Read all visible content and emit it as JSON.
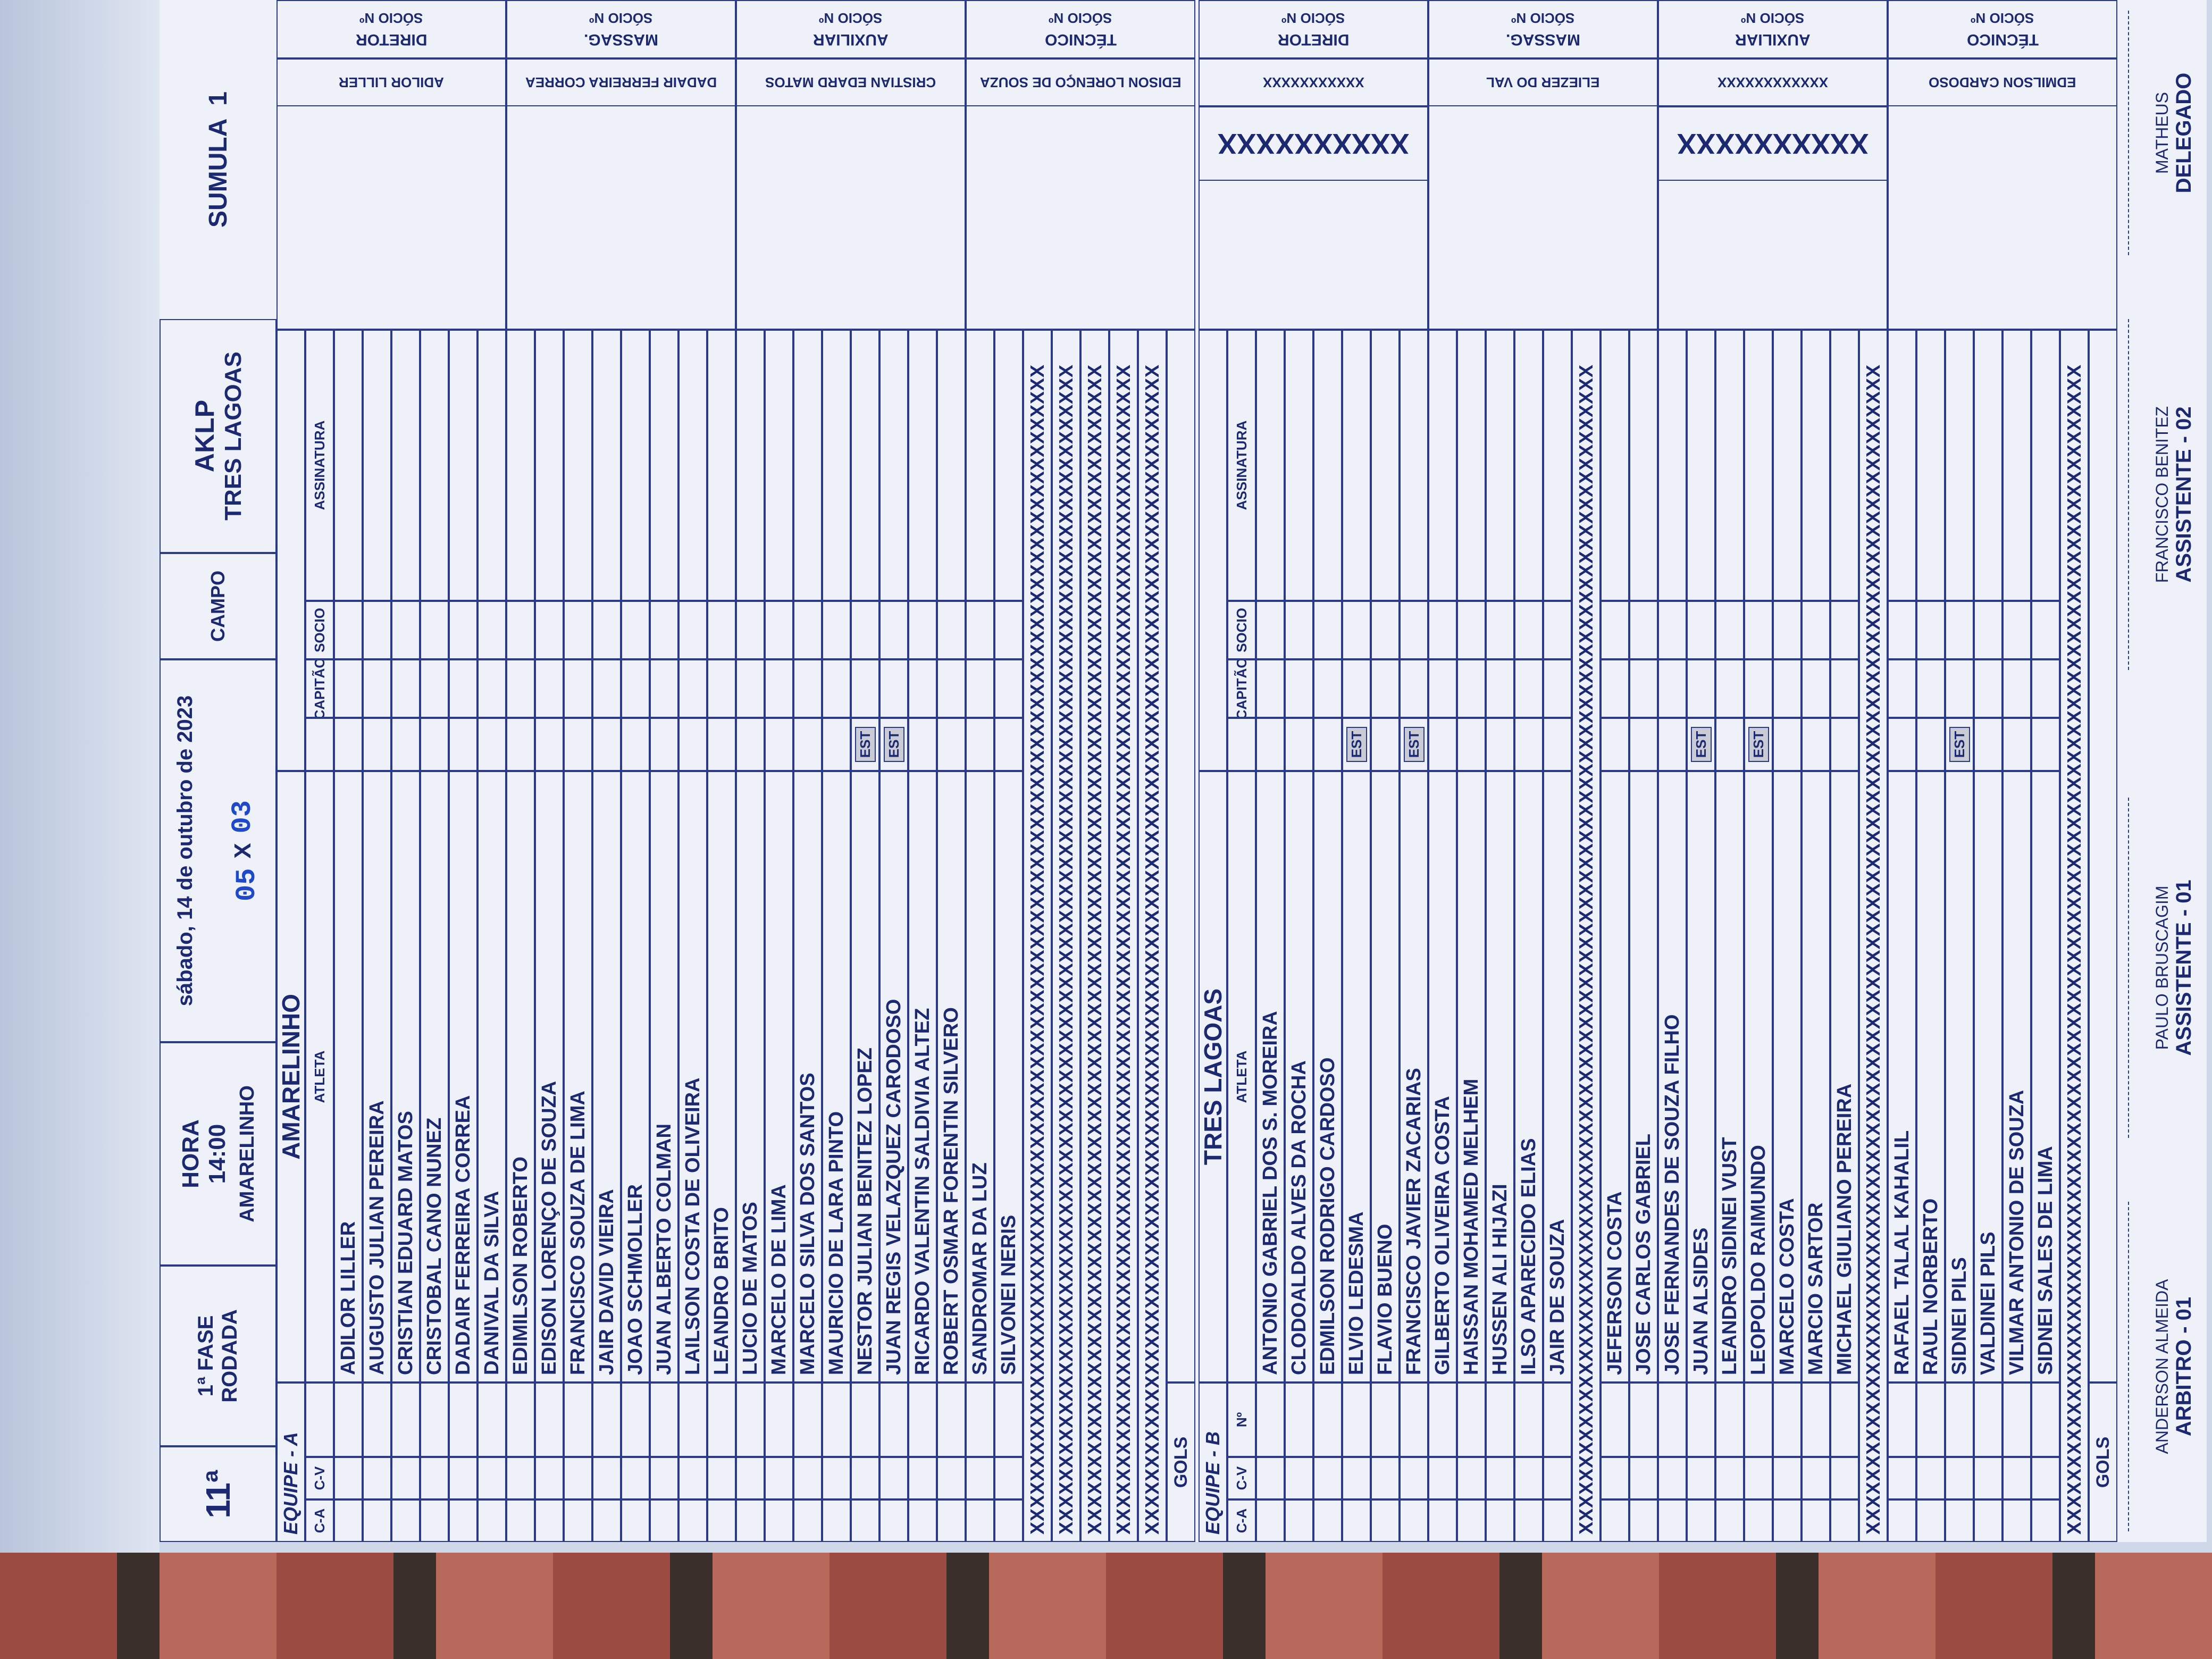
{
  "header": {
    "round": "11ª",
    "phase": "1ª FASE",
    "round_label": "RODADA",
    "time_label": "HORA",
    "time": "14:00",
    "date": "sábado, 14 de outubro de 2023",
    "score_home": "05",
    "score_sep": "X",
    "score_away": "03",
    "field_label": "CAMPO",
    "field": "TRES LAGOAS",
    "code": "AKLP",
    "form": "SUMULA",
    "form_number": "1"
  },
  "team_a": {
    "label": "EQUIPE - A",
    "name": "AMARELINHO",
    "col_ca": "C-A",
    "col_cv": "C-V",
    "col_athlete": "ATLETA",
    "col_captain": "CAPITÃO",
    "col_socio": "SOCIO",
    "col_signature": "ASSINATURA",
    "rows": [
      {
        "name": "ADILOR LILLER"
      },
      {
        "name": "AUGUSTO JULIAN PEREIRA"
      },
      {
        "name": "CRISTIAN EDUARD MATOS"
      },
      {
        "name": "CRISTOBAL CANO NUNEZ"
      },
      {
        "name": "DADAIR FERREIRA CORREA"
      },
      {
        "name": "DANIVAL DA SILVA"
      },
      {
        "name": "EDIMILSON ROBERTO"
      },
      {
        "name": "EDISON LORENÇO DE SOUZA"
      },
      {
        "name": "FRANCISCO SOUZA DE LIMA"
      },
      {
        "name": "JAIR DAVID VIEIRA"
      },
      {
        "name": "JOAO SCHMOLLER"
      },
      {
        "name": "JUAN ALBERTO COLMAN"
      },
      {
        "name": "LAILSON COSTA DE OLIVEIRA"
      },
      {
        "name": "LEANDRO BRITO"
      },
      {
        "name": "LUCIO DE MATOS"
      },
      {
        "name": "MARCELO DE LIMA"
      },
      {
        "name": "MARCELO SILVA DOS SANTOS"
      },
      {
        "name": "MAURICIO DE LARA PINTO"
      },
      {
        "name": "NESTOR JULIAN BENITEZ LOPEZ",
        "est": "EST"
      },
      {
        "name": "JUAN REGIS VELAZQUEZ CARODOSO",
        "est": "EST"
      },
      {
        "name": "RICARDO VALENTIN SALDIVIA ALTEZ"
      },
      {
        "name": "ROBERT OSMAR FORENTIN SILVERO"
      },
      {
        "name": "SANDROMAR DA LUZ"
      },
      {
        "name": "SILVONEI NERIS"
      },
      {
        "filler": "XXXXXXXXXXXXXXXXXXXXXXXXXXXXXXXXXXXXXXXXXXXXXXXXXXXXXXXXXXXXXXXXXXXXXXXXXXXXXXXXXXXXXXXX"
      },
      {
        "filler": "XXXXXXXXXXXXXXXXXXXXXXXXXXXXXXXXXXXXXXXXXXXXXXXXXXXXXXXXXXXXXXXXXXXXXXXXXXXXXXXXXXXXXXXX"
      },
      {
        "filler": "XXXXXXXXXXXXXXXXXXXXXXXXXXXXXXXXXXXXXXXXXXXXXXXXXXXXXXXXXXXXXXXXXXXXXXXXXXXXXXXXXXXXXXXX"
      },
      {
        "filler": "XXXXXXXXXXXXXXXXXXXXXXXXXXXXXXXXXXXXXXXXXXXXXXXXXXXXXXXXXXXXXXXXXXXXXXXXXXXXXXXXXXXXXXXX"
      },
      {
        "filler": "XXXXXXXXXXXXXXXXXXXXXXXXXXXXXXXXXXXXXXXXXXXXXXXXXXXXXXXXXXXXXXXXXXXXXXXXXXXXXXXXXXXXXXXX"
      }
    ],
    "goals_label": "GOLS",
    "officials": [
      {
        "role": "DIRETOR",
        "member": "SÓCIO Nº",
        "name": "ADILOR LILLER"
      },
      {
        "role": "MASSAG.",
        "member": "SÓCIO Nº",
        "name": "DADAIR FERREIRA CORREA"
      },
      {
        "role": "AUXILIAR",
        "member": "SÓCIO Nº",
        "name": "CRISTIAN EDARD MATOS"
      },
      {
        "role": "TÉCNICO",
        "member": "SÓCIO Nº",
        "name": "EDISON LORENÇO DE SOUZA"
      }
    ]
  },
  "team_b": {
    "label": "EQUIPE - B",
    "name": "TRES LAGOAS",
    "col_ca": "C-A",
    "col_cv": "C-V",
    "col_no": "Nº",
    "col_athlete": "ATLETA",
    "col_captain": "CAPITÃO",
    "col_socio": "SOCIO",
    "col_signature": "ASSINATURA",
    "rows": [
      {
        "name": "ANTONIO GABRIEL DOS S. MOREIRA"
      },
      {
        "name": "CLODOALDO ALVES DA ROCHA"
      },
      {
        "name": "EDMILSON RODRIGO CARDOSO"
      },
      {
        "name": "ELVIO LEDESMA",
        "est": "EST"
      },
      {
        "name": "FLAVIO BUENO"
      },
      {
        "name": "FRANCISCO JAVIER ZACARIAS",
        "est": "EST"
      },
      {
        "name": "GILBERTO OLIVEIRA COSTA"
      },
      {
        "name": "HAISSAN MOHAMED MELHEM"
      },
      {
        "name": "HUSSEN ALI HIJAZI"
      },
      {
        "name": "ILSO APARECIDO ELIAS"
      },
      {
        "name": "JAIR DE SOUZA"
      },
      {
        "filler": "XXXXXXXXXXXXXXXXXXXXXXXXXXXXXXXXXXXXXXXXXXXXXXXXXXXXXXXXXXXXXXXXXXXXXXXXXXXXXXXXXXXXXXXX"
      },
      {
        "name": "JEFERSON COSTA"
      },
      {
        "name": "JOSE CARLOS GABRIEL"
      },
      {
        "name": "JOSE FERNANDES DE SOUZA FILHO"
      },
      {
        "name": "JUAN ALSIDES",
        "est": "EST"
      },
      {
        "name": "LEANDRO SIDINEI VUST"
      },
      {
        "name": "LEOPOLDO RAIMUNDO",
        "est": "EST"
      },
      {
        "name": "MARCELO COSTA"
      },
      {
        "name": "MARCIO SARTOR"
      },
      {
        "name": "MICHAEL GIULIANO PEREIRA"
      },
      {
        "filler": "XXXXXXXXXXXXXXXXXXXXXXXXXXXXXXXXXXXXXXXXXXXXXXXXXXXXXXXXXXXXXXXXXXXXXXXXXXXXXXXXXXXXXXXX"
      },
      {
        "name": "RAFAEL TALAL KAHALIL"
      },
      {
        "name": "RAUL NORBERTO"
      },
      {
        "name": "SIDNEI PILS",
        "est": "EST"
      },
      {
        "name": "VALDINEI PILS"
      },
      {
        "name": "VILMAR ANTONIO DE SOUZA"
      },
      {
        "name": "SIDNEI SALES DE LIMA"
      },
      {
        "filler": "XXXXXXXXXXXXXXXXXXXXXXXXXXXXXXXXXXXXXXXXXXXXXXXXXXXXXXXXXXXXXXXXXXXXXXXXXXXXXXXXXXXXXXXX"
      }
    ],
    "goals_label": "GOLS",
    "officials": [
      {
        "role": "DIRETOR",
        "member": "SÓCIO Nº",
        "name": "XXXXXXXXXXX",
        "stamp": "XXXXXXXXXX"
      },
      {
        "role": "MASSAG.",
        "member": "SÓCIO Nº",
        "name": "ELIEZER DO VAL"
      },
      {
        "role": "AUXILIAR",
        "member": "SÓCIO Nº",
        "name": "XXXXXXXXXXXX",
        "stamp": "XXXXXXXXXX"
      },
      {
        "role": "TÉCNICO",
        "member": "SÓCIO Nº",
        "name": "EDMILSON CARDOSO"
      }
    ]
  },
  "footer": [
    {
      "name": "ANDERSON ALMEIDA",
      "role": "ARBITRO - 01"
    },
    {
      "name": "PAULO BRUSCAGIM",
      "role": "ASSISTENTE - 01"
    },
    {
      "name": "FRANCISCO BENITEZ",
      "role": "ASSISTENTE - 02"
    },
    {
      "name": "MATHEUS",
      "role": "DELEGADO"
    }
  ]
}
